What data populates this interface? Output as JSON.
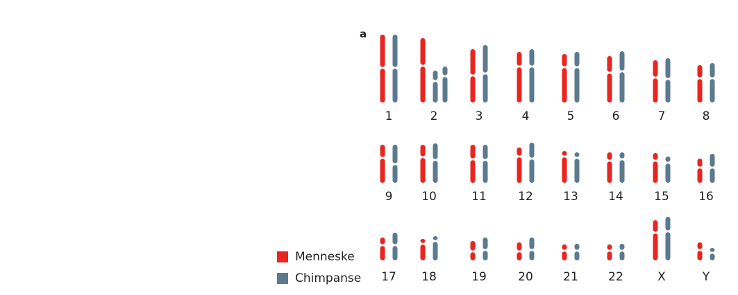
{
  "panel_label": "a",
  "colors": {
    "human": "#e8251f",
    "chimpanzee": "#5b7a8f",
    "text": "#231f20"
  },
  "legend": {
    "human": "Menneske",
    "chimpanzee": "Chimpanse"
  },
  "rows": [
    [
      {
        "label": "1",
        "human": {
          "top": 50,
          "cen": 98,
          "bottom": 148
        },
        "chimp": [
          {
            "top": 50,
            "cen": 98,
            "bottom": 148
          }
        ]
      },
      {
        "label": "2",
        "human": {
          "top": 55,
          "cen": 95,
          "bottom": 148
        },
        "chimp": [
          {
            "top": 102,
            "cen": 117,
            "bottom": 148
          },
          {
            "top": 96,
            "cen": 110,
            "bottom": 148
          }
        ]
      },
      {
        "label": "3",
        "human": {
          "top": 71,
          "cen": 109,
          "bottom": 148
        },
        "chimp": [
          {
            "top": 65,
            "cen": 106,
            "bottom": 148
          }
        ]
      },
      {
        "label": "4",
        "human": {
          "top": 75,
          "cen": 96,
          "bottom": 148
        },
        "chimp": [
          {
            "top": 71,
            "cen": 96,
            "bottom": 148
          }
        ]
      },
      {
        "label": "5",
        "human": {
          "top": 78,
          "cen": 97,
          "bottom": 148
        },
        "chimp": [
          {
            "top": 75,
            "cen": 97,
            "bottom": 148
          }
        ]
      },
      {
        "label": "6",
        "human": {
          "top": 81,
          "cen": 105,
          "bottom": 148
        },
        "chimp": [
          {
            "top": 74,
            "cen": 103,
            "bottom": 148
          }
        ]
      },
      {
        "label": "7",
        "human": {
          "top": 87,
          "cen": 112,
          "bottom": 148
        },
        "chimp": [
          {
            "top": 84,
            "cen": 114,
            "bottom": 148
          }
        ]
      },
      {
        "label": "8",
        "human": {
          "top": 94,
          "cen": 113,
          "bottom": 148
        },
        "chimp": [
          {
            "top": 91,
            "cen": 113,
            "bottom": 148
          }
        ]
      }
    ],
    [
      {
        "label": "9",
        "human": {
          "top": 209,
          "cen": 228,
          "bottom": 264
        },
        "chimp": [
          {
            "top": 209,
            "cen": 237,
            "bottom": 264
          }
        ]
      },
      {
        "label": "10",
        "human": {
          "top": 209,
          "cen": 227,
          "bottom": 264
        },
        "chimp": [
          {
            "top": 207,
            "cen": 231,
            "bottom": 264
          }
        ]
      },
      {
        "label": "11",
        "human": {
          "top": 209,
          "cen": 230,
          "bottom": 264
        },
        "chimp": [
          {
            "top": 209,
            "cen": 231,
            "bottom": 264
          }
        ]
      },
      {
        "label": "12",
        "human": {
          "top": 213,
          "cen": 226,
          "bottom": 264
        },
        "chimp": [
          {
            "top": 206,
            "cen": 229,
            "bottom": 264
          }
        ]
      },
      {
        "label": "13",
        "human": {
          "top": 218,
          "cen": 226,
          "bottom": 264
        },
        "chimp": [
          {
            "top": 220,
            "cen": 228,
            "bottom": 264
          }
        ]
      },
      {
        "label": "14",
        "human": {
          "top": 220,
          "cen": 232,
          "bottom": 264
        },
        "chimp": [
          {
            "top": 220,
            "cen": 230,
            "bottom": 264
          }
        ]
      },
      {
        "label": "15",
        "human": {
          "top": 221,
          "cen": 232,
          "bottom": 264
        },
        "chimp": [
          {
            "top": 226,
            "cen": 235,
            "bottom": 264
          }
        ]
      },
      {
        "label": "16",
        "human": {
          "top": 229,
          "cen": 242,
          "bottom": 264
        },
        "chimp": [
          {
            "top": 222,
            "cen": 242,
            "bottom": 264
          }
        ]
      }
    ],
    [
      {
        "label": "17",
        "human": {
          "top": 343,
          "cen": 354,
          "bottom": 376
        },
        "chimp": [
          {
            "top": 336,
            "cen": 354,
            "bottom": 376
          }
        ]
      },
      {
        "label": "18",
        "human": {
          "top": 345,
          "cen": 352,
          "bottom": 376
        },
        "chimp": [
          {
            "top": 341,
            "cen": 348,
            "bottom": 376
          }
        ]
      },
      {
        "label": "19",
        "human": {
          "top": 348,
          "cen": 363,
          "bottom": 376
        },
        "chimp": [
          {
            "top": 343,
            "cen": 361,
            "bottom": 376
          }
        ]
      },
      {
        "label": "20",
        "human": {
          "top": 350,
          "cen": 363,
          "bottom": 376
        },
        "chimp": [
          {
            "top": 343,
            "cen": 361,
            "bottom": 376
          }
        ]
      },
      {
        "label": "21",
        "human": {
          "top": 353,
          "cen": 362,
          "bottom": 376
        },
        "chimp": [
          {
            "top": 352,
            "cen": 362,
            "bottom": 376
          }
        ]
      },
      {
        "label": "22",
        "human": {
          "top": 353,
          "cen": 362,
          "bottom": 376
        },
        "chimp": [
          {
            "top": 352,
            "cen": 362,
            "bottom": 376
          }
        ]
      },
      {
        "label": "X",
        "human": {
          "top": 318,
          "cen": 336,
          "bottom": 376
        },
        "chimp": [
          {
            "top": 313,
            "cen": 334,
            "bottom": 376
          }
        ]
      },
      {
        "label": "Y",
        "human": {
          "top": 350,
          "cen": 361,
          "bottom": 376
        },
        "chimp": [
          {
            "top": 358,
            "cen": 365,
            "bottom": 376
          }
        ]
      }
    ]
  ]
}
